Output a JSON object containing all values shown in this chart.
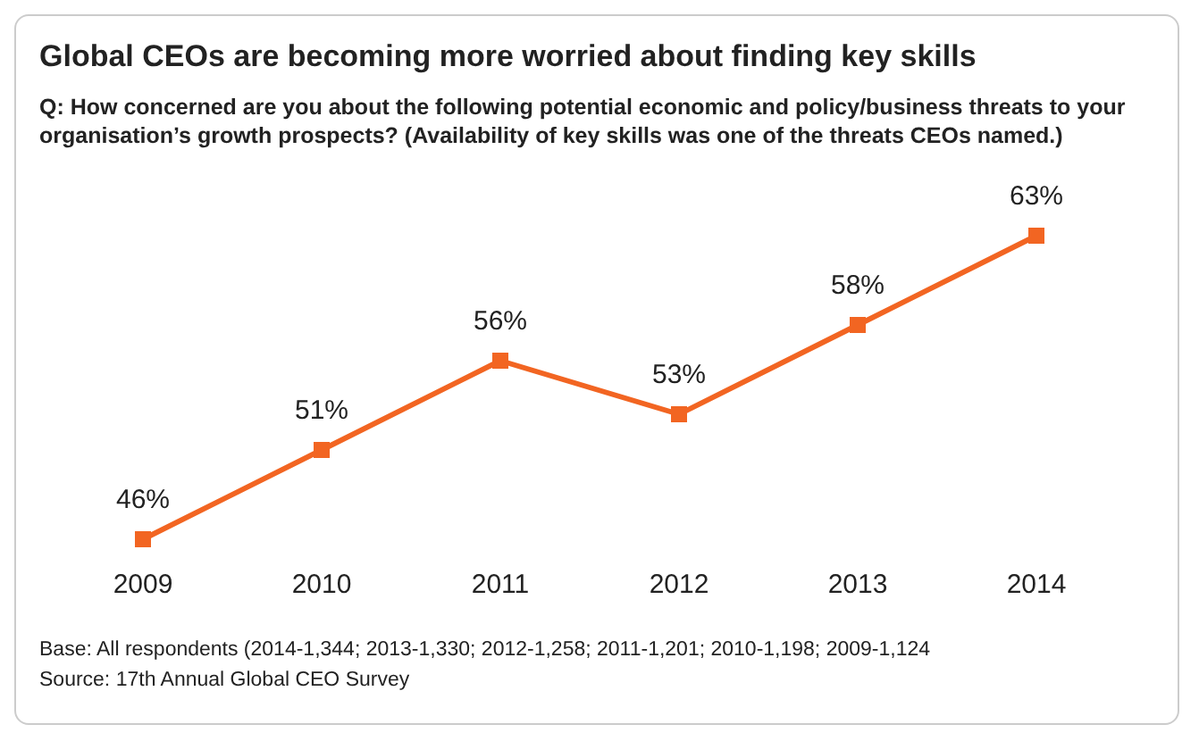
{
  "chart_data": {
    "type": "line",
    "title": "Global CEOs are becoming more worried about finding key skills",
    "subtitle": "Q: How concerned are you about the following potential economic and policy/business threats to your organisation’s growth prospects? (Availability of key skills was one of the threats CEOs named.)",
    "categories": [
      "2009",
      "2010",
      "2011",
      "2012",
      "2013",
      "2014"
    ],
    "series": [
      {
        "color": "#f26522",
        "values": [
          46,
          51,
          56,
          53,
          58,
          63
        ],
        "value_labels": [
          "46%",
          "51%",
          "56%",
          "53%",
          "58%",
          "63%"
        ]
      }
    ],
    "marker": "square",
    "line_style": "solid",
    "grid": false,
    "annotations": [
      "Base: All respondents (2014-1,344; 2013-1,330; 2012-1,258; 2011-1,201; 2010-1,198; 2009-1,124",
      "Source: 17th Annual Global CEO Survey"
    ]
  }
}
